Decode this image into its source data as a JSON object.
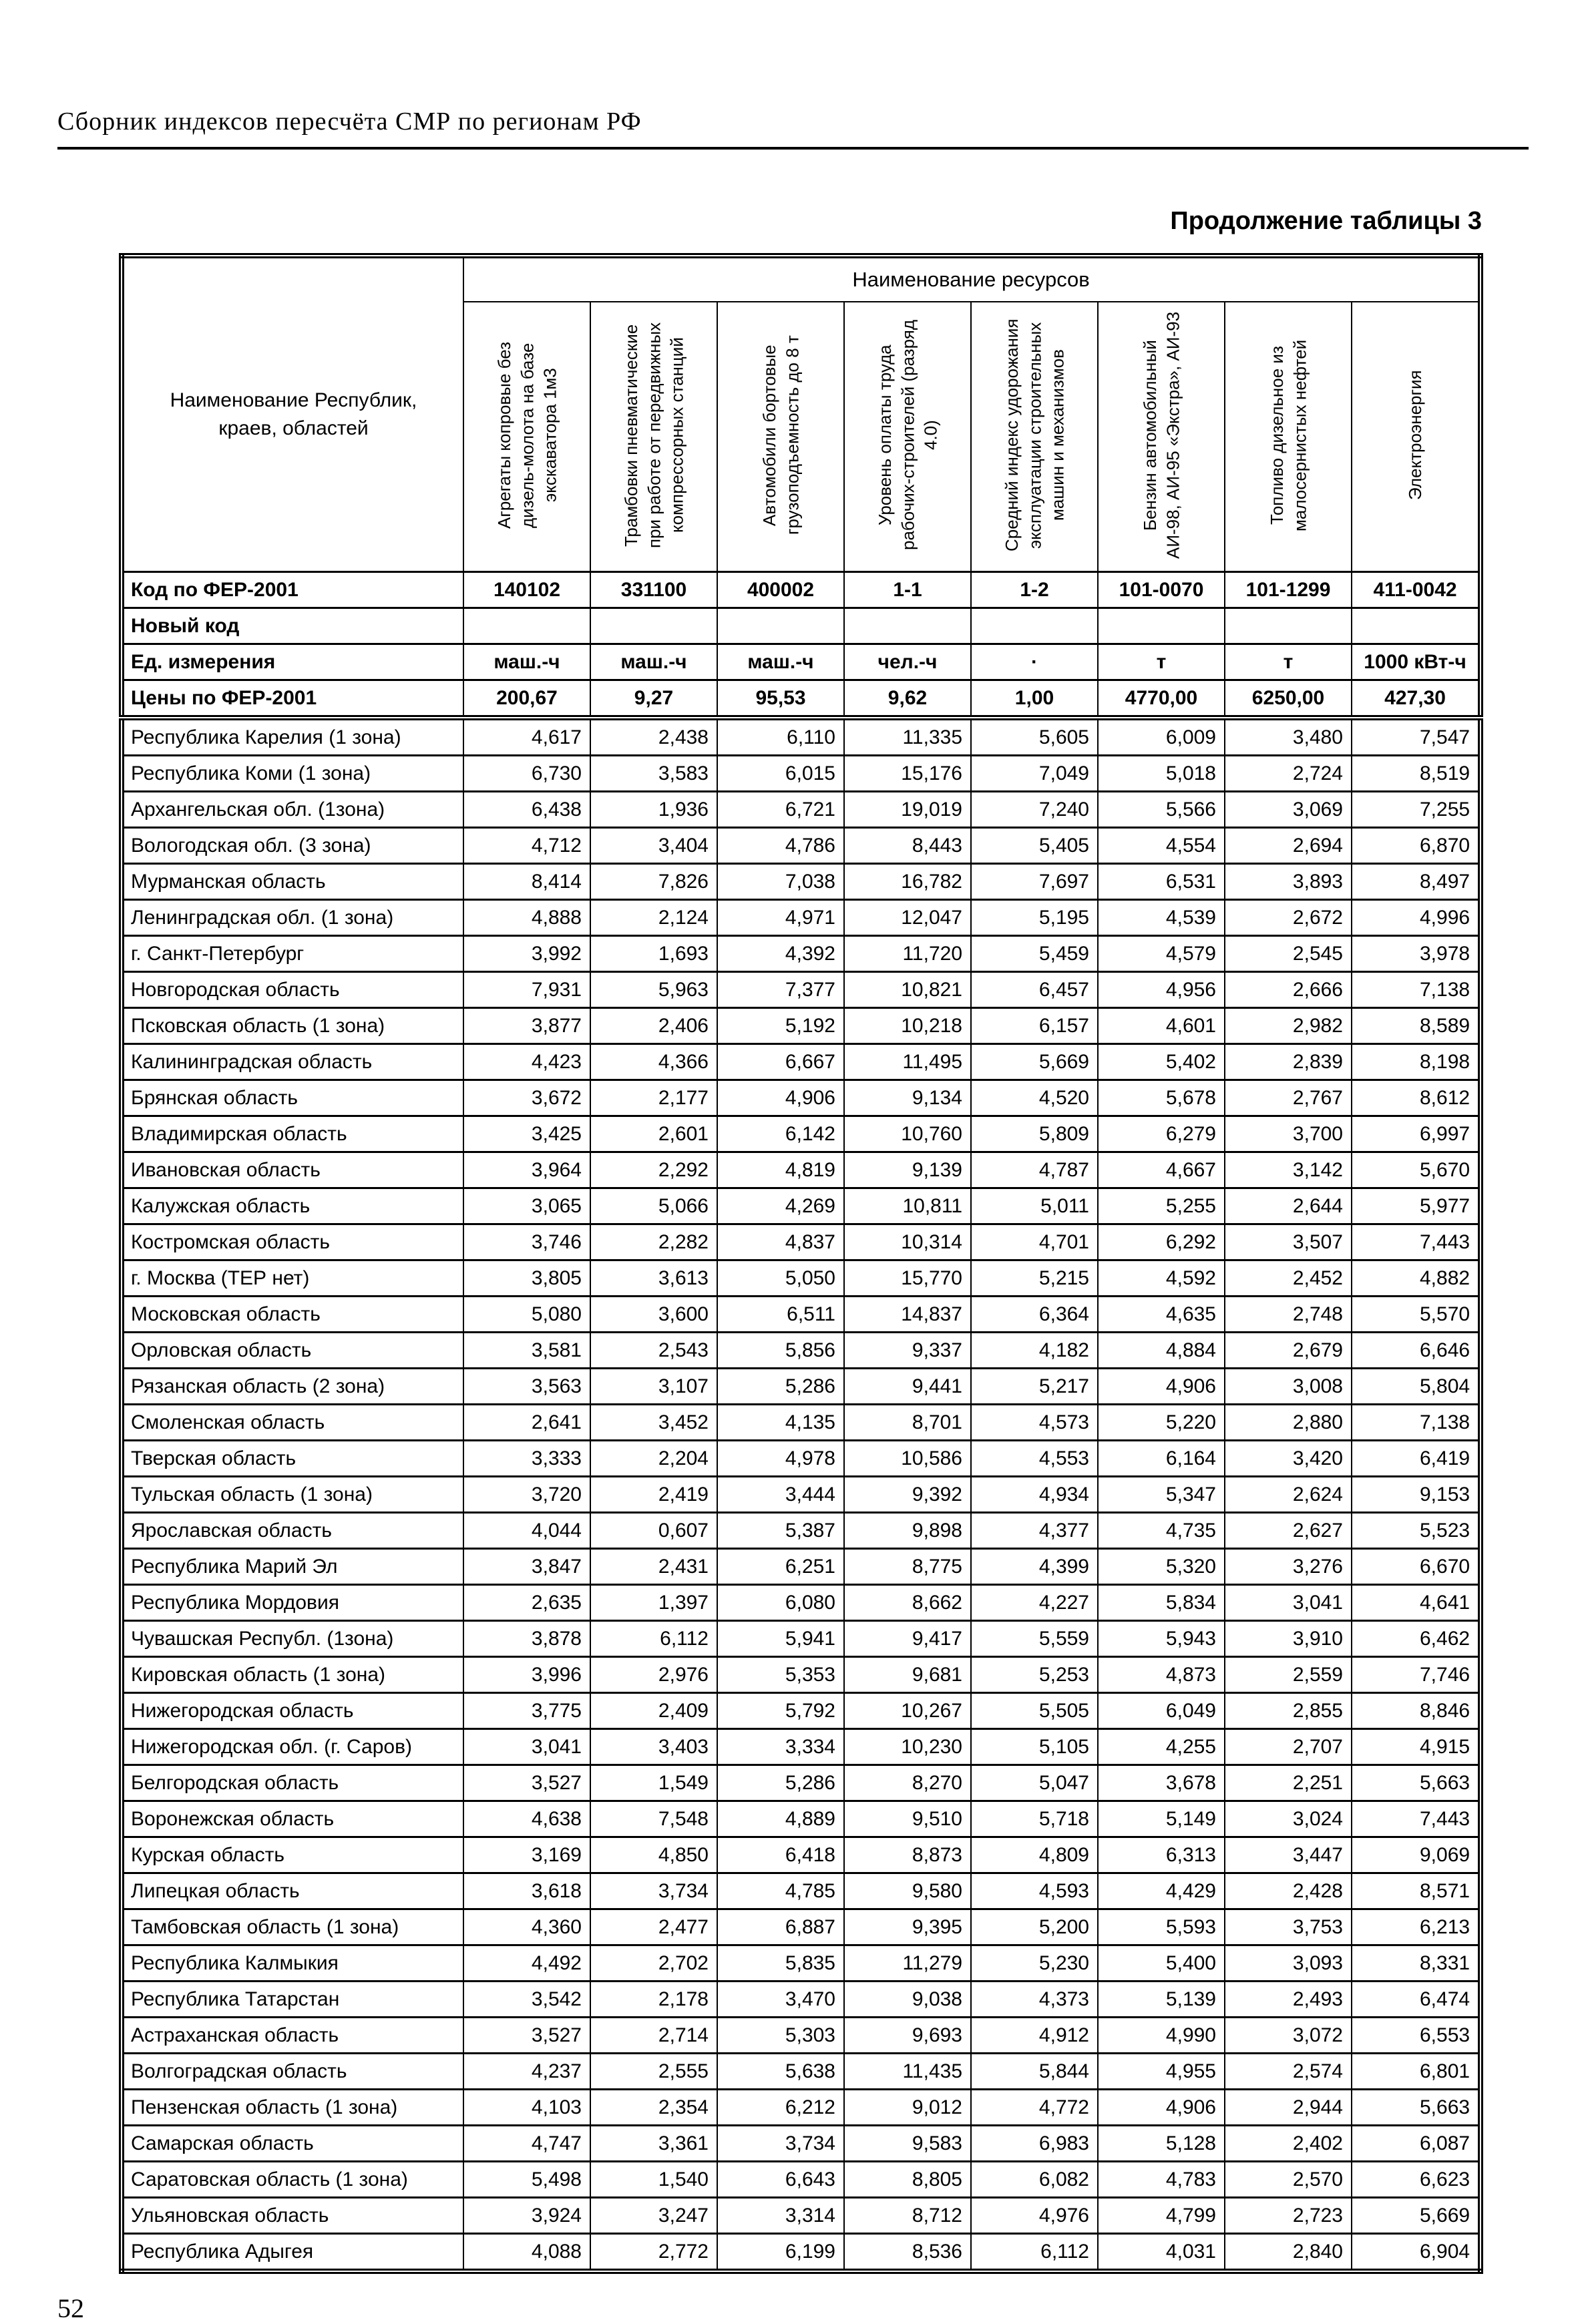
{
  "page": {
    "header_title": "Сборник индексов пересчёта СМР  по регионам РФ",
    "table_caption": "Продолжение таблицы 3",
    "page_number": "52"
  },
  "table": {
    "name_column_header": "Наименование Республик, краев, областей",
    "resources_group_header": "Наименование ресурсов",
    "resource_columns": [
      "Агрегаты копровые без дизель-молота на базе экскаватора 1м3",
      "Трамбовки пневматические при работе от передвижных компрессорных станций",
      "Автомобили бортовые грузоподъемность до 8 т",
      "Уровень оплаты труда рабочих-строителей (разряд 4.0)",
      "Средний индекс удорожания эксплуатации строительных машин и механизмов",
      "Бензин автомобильный АИ-98, АИ-95 «Экстра», АИ-93",
      "Топливо дизельное из малосернистых нефтей",
      "Электроэнергия"
    ],
    "meta_rows": [
      {
        "label": "Код по ФЕР-2001",
        "values": [
          "140102",
          "331100",
          "400002",
          "1-1",
          "1-2",
          "101-0070",
          "101-1299",
          "411-0042"
        ]
      },
      {
        "label": "Новый код",
        "values": [
          "",
          "",
          "",
          "",
          "",
          "",
          "",
          ""
        ]
      },
      {
        "label": "Ед. измерения",
        "values": [
          "маш.-ч",
          "маш.-ч",
          "маш.-ч",
          "чел.-ч",
          "·",
          "т",
          "т",
          "1000 кВт-ч"
        ]
      },
      {
        "label": "Цены по ФЕР-2001",
        "values": [
          "200,67",
          "9,27",
          "95,53",
          "9,62",
          "1,00",
          "4770,00",
          "6250,00",
          "427,30"
        ]
      }
    ],
    "rows": [
      {
        "name": "Республика Карелия (1 зона)",
        "values": [
          "4,617",
          "2,438",
          "6,110",
          "11,335",
          "5,605",
          "6,009",
          "3,480",
          "7,547"
        ]
      },
      {
        "name": "Республика Коми (1 зона)",
        "values": [
          "6,730",
          "3,583",
          "6,015",
          "15,176",
          "7,049",
          "5,018",
          "2,724",
          "8,519"
        ]
      },
      {
        "name": "Архангельская обл. (1зона)",
        "values": [
          "6,438",
          "1,936",
          "6,721",
          "19,019",
          "7,240",
          "5,566",
          "3,069",
          "7,255"
        ]
      },
      {
        "name": "Вологодская обл. (3 зона)",
        "values": [
          "4,712",
          "3,404",
          "4,786",
          "8,443",
          "5,405",
          "4,554",
          "2,694",
          "6,870"
        ]
      },
      {
        "name": "Мурманская область",
        "values": [
          "8,414",
          "7,826",
          "7,038",
          "16,782",
          "7,697",
          "6,531",
          "3,893",
          "8,497"
        ]
      },
      {
        "name": "Ленинградская обл. (1 зона)",
        "values": [
          "4,888",
          "2,124",
          "4,971",
          "12,047",
          "5,195",
          "4,539",
          "2,672",
          "4,996"
        ]
      },
      {
        "name": "г. Санкт-Петербург",
        "values": [
          "3,992",
          "1,693",
          "4,392",
          "11,720",
          "5,459",
          "4,579",
          "2,545",
          "3,978"
        ]
      },
      {
        "name": "Новгородская область",
        "values": [
          "7,931",
          "5,963",
          "7,377",
          "10,821",
          "6,457",
          "4,956",
          "2,666",
          "7,138"
        ]
      },
      {
        "name": "Псковская область (1 зона)",
        "values": [
          "3,877",
          "2,406",
          "5,192",
          "10,218",
          "6,157",
          "4,601",
          "2,982",
          "8,589"
        ]
      },
      {
        "name": "Калининградская область",
        "values": [
          "4,423",
          "4,366",
          "6,667",
          "11,495",
          "5,669",
          "5,402",
          "2,839",
          "8,198"
        ]
      },
      {
        "name": "Брянская область",
        "values": [
          "3,672",
          "2,177",
          "4,906",
          "9,134",
          "4,520",
          "5,678",
          "2,767",
          "8,612"
        ]
      },
      {
        "name": "Владимирская область",
        "values": [
          "3,425",
          "2,601",
          "6,142",
          "10,760",
          "5,809",
          "6,279",
          "3,700",
          "6,997"
        ]
      },
      {
        "name": "Ивановская область",
        "values": [
          "3,964",
          "2,292",
          "4,819",
          "9,139",
          "4,787",
          "4,667",
          "3,142",
          "5,670"
        ]
      },
      {
        "name": "Калужская область",
        "values": [
          "3,065",
          "5,066",
          "4,269",
          "10,811",
          "5,011",
          "5,255",
          "2,644",
          "5,977"
        ]
      },
      {
        "name": "Костромская область",
        "values": [
          "3,746",
          "2,282",
          "4,837",
          "10,314",
          "4,701",
          "6,292",
          "3,507",
          "7,443"
        ]
      },
      {
        "name": "г. Москва (ТЕР нет)",
        "values": [
          "3,805",
          "3,613",
          "5,050",
          "15,770",
          "5,215",
          "4,592",
          "2,452",
          "4,882"
        ]
      },
      {
        "name": "Московская  область",
        "values": [
          "5,080",
          "3,600",
          "6,511",
          "14,837",
          "6,364",
          "4,635",
          "2,748",
          "5,570"
        ]
      },
      {
        "name": "Орловская область",
        "values": [
          "3,581",
          "2,543",
          "5,856",
          "9,337",
          "4,182",
          "4,884",
          "2,679",
          "6,646"
        ]
      },
      {
        "name": "Рязанская область (2 зона)",
        "values": [
          "3,563",
          "3,107",
          "5,286",
          "9,441",
          "5,217",
          "4,906",
          "3,008",
          "5,804"
        ]
      },
      {
        "name": "Смоленская область",
        "values": [
          "2,641",
          "3,452",
          "4,135",
          "8,701",
          "4,573",
          "5,220",
          "2,880",
          "7,138"
        ]
      },
      {
        "name": "Тверская область",
        "values": [
          "3,333",
          "2,204",
          "4,978",
          "10,586",
          "4,553",
          "6,164",
          "3,420",
          "6,419"
        ]
      },
      {
        "name": "Тульская область (1 зона)",
        "values": [
          "3,720",
          "2,419",
          "3,444",
          "9,392",
          "4,934",
          "5,347",
          "2,624",
          "9,153"
        ]
      },
      {
        "name": "Ярославская область",
        "values": [
          "4,044",
          "0,607",
          "5,387",
          "9,898",
          "4,377",
          "4,735",
          "2,627",
          "5,523"
        ]
      },
      {
        "name": "Республика Марий Эл",
        "values": [
          "3,847",
          "2,431",
          "6,251",
          "8,775",
          "4,399",
          "5,320",
          "3,276",
          "6,670"
        ]
      },
      {
        "name": "Республика Мордовия",
        "values": [
          "2,635",
          "1,397",
          "6,080",
          "8,662",
          "4,227",
          "5,834",
          "3,041",
          "4,641"
        ]
      },
      {
        "name": "Чувашская Республ. (1зона)",
        "values": [
          "3,878",
          "6,112",
          "5,941",
          "9,417",
          "5,559",
          "5,943",
          "3,910",
          "6,462"
        ]
      },
      {
        "name": "Кировская область (1 зона)",
        "values": [
          "3,996",
          "2,976",
          "5,353",
          "9,681",
          "5,253",
          "4,873",
          "2,559",
          "7,746"
        ]
      },
      {
        "name": "Нижегородская область",
        "values": [
          "3,775",
          "2,409",
          "5,792",
          "10,267",
          "5,505",
          "6,049",
          "2,855",
          "8,846"
        ]
      },
      {
        "name": "Нижегородская обл. (г. Саров)",
        "values": [
          "3,041",
          "3,403",
          "3,334",
          "10,230",
          "5,105",
          "4,255",
          "2,707",
          "4,915"
        ]
      },
      {
        "name": "Белгородская область",
        "values": [
          "3,527",
          "1,549",
          "5,286",
          "8,270",
          "5,047",
          "3,678",
          "2,251",
          "5,663"
        ]
      },
      {
        "name": "Воронежская область",
        "values": [
          "4,638",
          "7,548",
          "4,889",
          "9,510",
          "5,718",
          "5,149",
          "3,024",
          "7,443"
        ]
      },
      {
        "name": "Курская область",
        "values": [
          "3,169",
          "4,850",
          "6,418",
          "8,873",
          "4,809",
          "6,313",
          "3,447",
          "9,069"
        ]
      },
      {
        "name": "Липецкая область",
        "values": [
          "3,618",
          "3,734",
          "4,785",
          "9,580",
          "4,593",
          "4,429",
          "2,428",
          "8,571"
        ]
      },
      {
        "name": "Тамбовская область (1 зона)",
        "values": [
          "4,360",
          "2,477",
          "6,887",
          "9,395",
          "5,200",
          "5,593",
          "3,753",
          "6,213"
        ]
      },
      {
        "name": "Республика Калмыкия",
        "values": [
          "4,492",
          "2,702",
          "5,835",
          "11,279",
          "5,230",
          "5,400",
          "3,093",
          "8,331"
        ]
      },
      {
        "name": "Республика Татарстан",
        "values": [
          "3,542",
          "2,178",
          "3,470",
          "9,038",
          "4,373",
          "5,139",
          "2,493",
          "6,474"
        ]
      },
      {
        "name": "Астраханская область",
        "values": [
          "3,527",
          "2,714",
          "5,303",
          "9,693",
          "4,912",
          "4,990",
          "3,072",
          "6,553"
        ]
      },
      {
        "name": "Волгоградская область",
        "values": [
          "4,237",
          "2,555",
          "5,638",
          "11,435",
          "5,844",
          "4,955",
          "2,574",
          "6,801"
        ]
      },
      {
        "name": "Пензенская область (1 зона)",
        "values": [
          "4,103",
          "2,354",
          "6,212",
          "9,012",
          "4,772",
          "4,906",
          "2,944",
          "5,663"
        ]
      },
      {
        "name": "Самарская область",
        "values": [
          "4,747",
          "3,361",
          "3,734",
          "9,583",
          "6,983",
          "5,128",
          "2,402",
          "6,087"
        ]
      },
      {
        "name": "Саратовская область (1 зона)",
        "values": [
          "5,498",
          "1,540",
          "6,643",
          "8,805",
          "6,082",
          "4,783",
          "2,570",
          "6,623"
        ]
      },
      {
        "name": "Ульяновская область",
        "values": [
          "3,924",
          "3,247",
          "3,314",
          "8,712",
          "4,976",
          "4,799",
          "2,723",
          "5,669"
        ]
      },
      {
        "name": "Республика Адыгея",
        "values": [
          "4,088",
          "2,772",
          "6,199",
          "8,536",
          "6,112",
          "4,031",
          "2,840",
          "6,904"
        ]
      }
    ]
  }
}
